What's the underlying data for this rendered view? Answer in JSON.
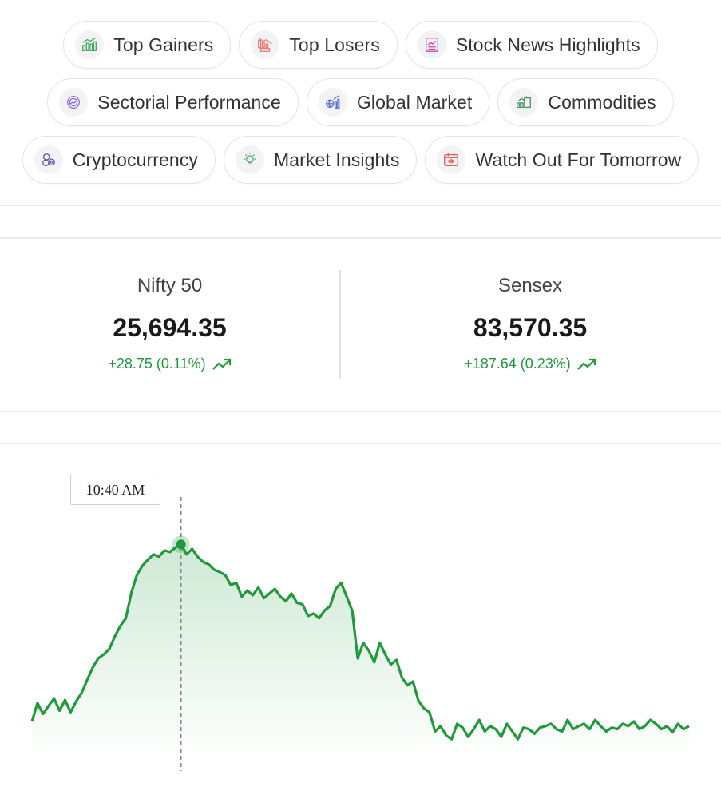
{
  "chips": {
    "top_gainers": "Top Gainers",
    "top_losers": "Top Losers",
    "stock_news": "Stock News Highlights",
    "sectorial": "Sectorial Performance",
    "global_market": "Global Market",
    "commodities": "Commodities",
    "cryptocurrency": "Cryptocurrency",
    "market_insights": "Market Insights",
    "watch_out": "Watch Out For Tomorrow"
  },
  "indices": {
    "nifty": {
      "name": "Nifty 50",
      "value": "25,694.35",
      "change": "+28.75 (0.11%)",
      "trend": "up"
    },
    "sensex": {
      "name": "Sensex",
      "value": "83,570.35",
      "change": "+187.64 (0.23%)",
      "trend": "up"
    }
  },
  "chart": {
    "tooltip_time": "10:40 AM",
    "line_color": "#1f9a3a"
  },
  "chart_data": {
    "type": "area",
    "title": "",
    "xlabel": "",
    "ylabel": "",
    "grid": false,
    "highlighted_point": {
      "label": "10:40 AM"
    },
    "values": [
      252,
      228,
      242,
      232,
      222,
      238,
      224,
      240,
      226,
      215,
      198,
      182,
      170,
      165,
      158,
      142,
      128,
      118,
      85,
      62,
      50,
      42,
      35,
      38,
      30,
      32,
      26,
      22,
      35,
      28,
      38,
      45,
      48,
      55,
      58,
      62,
      75,
      72,
      90,
      82,
      88,
      78,
      92,
      86,
      80,
      90,
      96,
      86,
      98,
      100,
      115,
      112,
      118,
      108,
      102,
      80,
      72,
      90,
      108,
      170,
      150,
      160,
      175,
      150,
      165,
      178,
      172,
      195,
      205,
      200,
      225,
      235,
      240,
      265,
      258,
      270,
      275,
      255,
      260,
      272,
      262,
      250,
      265,
      258,
      262,
      272,
      255,
      265,
      275,
      260,
      262,
      268,
      260,
      258,
      255,
      262,
      265,
      250,
      262,
      258,
      255,
      262,
      250,
      258,
      265,
      260,
      262,
      255,
      258,
      252,
      262,
      258,
      250,
      255,
      262,
      258,
      266,
      255,
      262,
      258
    ]
  }
}
